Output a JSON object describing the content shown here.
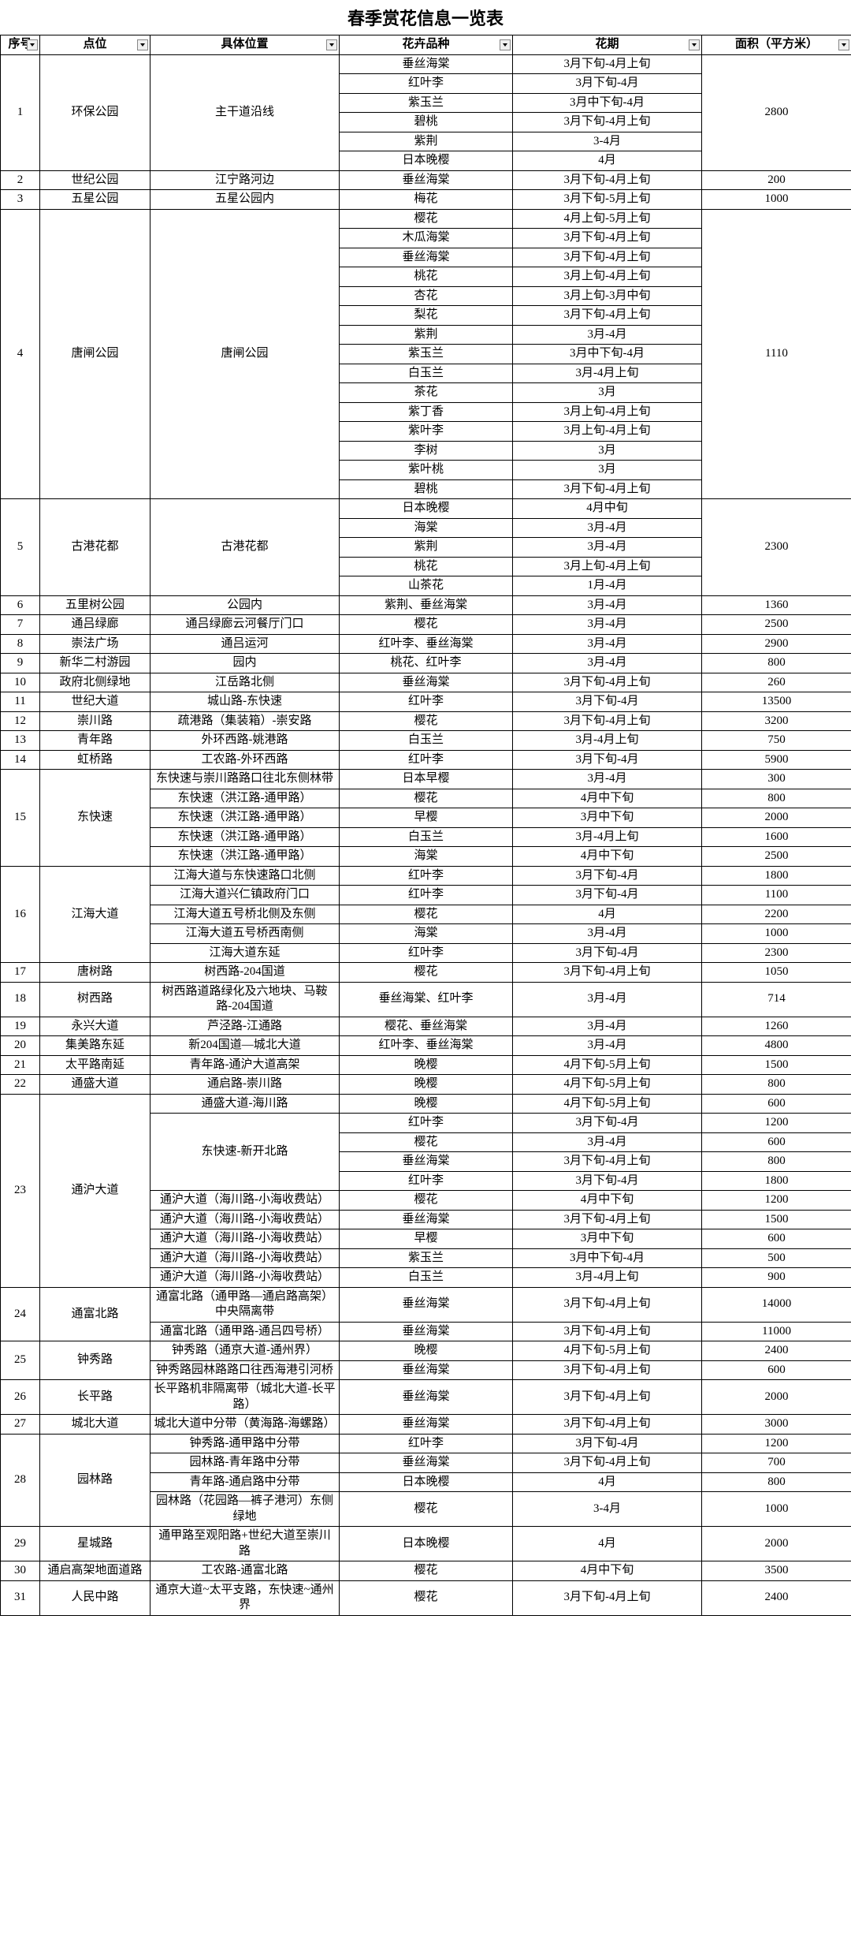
{
  "title": "春季赏花信息一览表",
  "headers": [
    "序号",
    "点位",
    "具体位置",
    "花卉品种",
    "花期",
    "面积（平方米）"
  ],
  "groups": [
    {
      "seq": "1",
      "site": "环保公园",
      "loc": "主干道沿线",
      "area": "2800",
      "items": [
        {
          "flower": "垂丝海棠",
          "period": "3月下旬-4月上旬"
        },
        {
          "flower": "红叶李",
          "period": "3月下旬-4月"
        },
        {
          "flower": "紫玉兰",
          "period": "3月中下旬-4月"
        },
        {
          "flower": "碧桃",
          "period": "3月下旬-4月上旬"
        },
        {
          "flower": "紫荆",
          "period": "3-4月"
        },
        {
          "flower": "日本晚樱",
          "period": "4月"
        }
      ]
    },
    {
      "seq": "2",
      "site": "世纪公园",
      "loc": "江宁路河边",
      "area": "200",
      "items": [
        {
          "flower": "垂丝海棠",
          "period": "3月下旬-4月上旬"
        }
      ]
    },
    {
      "seq": "3",
      "site": "五星公园",
      "loc": "五星公园内",
      "area": "1000",
      "items": [
        {
          "flower": "梅花",
          "period": "3月下旬-5月上旬"
        }
      ]
    },
    {
      "seq": "4",
      "site": "唐闸公园",
      "loc": "唐闸公园",
      "area": "1110",
      "items": [
        {
          "flower": "樱花",
          "period": "4月上旬-5月上旬"
        },
        {
          "flower": "木瓜海棠",
          "period": "3月下旬-4月上旬"
        },
        {
          "flower": "垂丝海棠",
          "period": "3月下旬-4月上旬"
        },
        {
          "flower": "桃花",
          "period": "3月上旬-4月上旬"
        },
        {
          "flower": "杏花",
          "period": "3月上旬-3月中旬"
        },
        {
          "flower": "梨花",
          "period": "3月下旬-4月上旬"
        },
        {
          "flower": "紫荆",
          "period": "3月-4月"
        },
        {
          "flower": "紫玉兰",
          "period": "3月中下旬-4月"
        },
        {
          "flower": "白玉兰",
          "period": "3月-4月上旬"
        },
        {
          "flower": "茶花",
          "period": "3月"
        },
        {
          "flower": "紫丁香",
          "period": "3月上旬-4月上旬"
        },
        {
          "flower": "紫叶李",
          "period": "3月上旬-4月上旬"
        },
        {
          "flower": "李树",
          "period": "3月"
        },
        {
          "flower": "紫叶桃",
          "period": "3月"
        },
        {
          "flower": "碧桃",
          "period": "3月下旬-4月上旬"
        }
      ]
    },
    {
      "seq": "5",
      "site": "古港花都",
      "loc": "古港花都",
      "area": "2300",
      "items": [
        {
          "flower": "日本晚樱",
          "period": "4月中旬"
        },
        {
          "flower": "海棠",
          "period": "3月-4月"
        },
        {
          "flower": "紫荆",
          "period": "3月-4月"
        },
        {
          "flower": "桃花",
          "period": "3月上旬-4月上旬"
        },
        {
          "flower": "山茶花",
          "period": "1月-4月"
        }
      ]
    },
    {
      "seq": "6",
      "site": "五里树公园",
      "loc": "公园内",
      "area": "1360",
      "items": [
        {
          "flower": "紫荆、垂丝海棠",
          "period": "3月-4月"
        }
      ]
    },
    {
      "seq": "7",
      "site": "通吕绿廊",
      "loc": "通吕绿廊云河餐厅门口",
      "area": "2500",
      "items": [
        {
          "flower": "樱花",
          "period": "3月-4月"
        }
      ]
    },
    {
      "seq": "8",
      "site": "崇法广场",
      "loc": "通吕运河",
      "area": "2900",
      "items": [
        {
          "flower": "红叶李、垂丝海棠",
          "period": "3月-4月"
        }
      ]
    },
    {
      "seq": "9",
      "site": "新华二村游园",
      "loc": "园内",
      "area": "800",
      "items": [
        {
          "flower": "桃花、红叶李",
          "period": "3月-4月"
        }
      ]
    },
    {
      "seq": "10",
      "site": "政府北侧绿地",
      "loc": "江岳路北侧",
      "area": "260",
      "items": [
        {
          "flower": "垂丝海棠",
          "period": "3月下旬-4月上旬"
        }
      ]
    },
    {
      "seq": "11",
      "site": "世纪大道",
      "loc": "城山路-东快速",
      "area": "13500",
      "items": [
        {
          "flower": "红叶李",
          "period": "3月下旬-4月"
        }
      ]
    },
    {
      "seq": "12",
      "site": "崇川路",
      "loc": "疏港路（集装箱）-崇安路",
      "area": "3200",
      "items": [
        {
          "flower": "樱花",
          "period": "3月下旬-4月上旬"
        }
      ]
    },
    {
      "seq": "13",
      "site": "青年路",
      "loc": "外环西路-姚港路",
      "area": "750",
      "items": [
        {
          "flower": "白玉兰",
          "period": "3月-4月上旬"
        }
      ]
    },
    {
      "seq": "14",
      "site": "虹桥路",
      "loc": "工农路-外环西路",
      "area": "5900",
      "items": [
        {
          "flower": "红叶李",
          "period": "3月下旬-4月"
        }
      ]
    },
    {
      "seq": "15",
      "site": "东快速",
      "sublocs": [
        {
          "loc": "东快速与崇川路路口往北东侧林带",
          "flower": "日本早樱",
          "period": "3月-4月",
          "area": "300"
        },
        {
          "loc": "东快速（洪江路-通甲路）",
          "flower": "樱花",
          "period": "4月中下旬",
          "area": "800"
        },
        {
          "loc": "东快速（洪江路-通甲路）",
          "flower": "早樱",
          "period": "3月中下旬",
          "area": "2000"
        },
        {
          "loc": "东快速（洪江路-通甲路）",
          "flower": "白玉兰",
          "period": "3月-4月上旬",
          "area": "1600"
        },
        {
          "loc": "东快速（洪江路-通甲路）",
          "flower": "海棠",
          "period": "4月中下旬",
          "area": "2500"
        }
      ]
    },
    {
      "seq": "16",
      "site": "江海大道",
      "sublocs": [
        {
          "loc": "江海大道与东快速路口北侧",
          "flower": "红叶李",
          "period": "3月下旬-4月",
          "area": "1800"
        },
        {
          "loc": "江海大道兴仁镇政府门口",
          "flower": "红叶李",
          "period": "3月下旬-4月",
          "area": "1100"
        },
        {
          "loc": "江海大道五号桥北侧及东侧",
          "flower": "樱花",
          "period": "4月",
          "area": "2200"
        },
        {
          "loc": "江海大道五号桥西南侧",
          "flower": "海棠",
          "period": "3月-4月",
          "area": "1000"
        },
        {
          "loc": "江海大道东延",
          "flower": "红叶李",
          "period": "3月下旬-4月",
          "area": "2300"
        }
      ]
    },
    {
      "seq": "17",
      "site": "唐树路",
      "loc": "树西路-204国道",
      "area": "1050",
      "items": [
        {
          "flower": "樱花",
          "period": "3月下旬-4月上旬"
        }
      ]
    },
    {
      "seq": "18",
      "site": "树西路",
      "loc": "树西路道路绿化及六地块、马鞍路-204国道",
      "area": "714",
      "items": [
        {
          "flower": "垂丝海棠、红叶李",
          "period": "3月-4月"
        }
      ]
    },
    {
      "seq": "19",
      "site": "永兴大道",
      "loc": "芦泾路-江通路",
      "area": "1260",
      "items": [
        {
          "flower": "樱花、垂丝海棠",
          "period": "3月-4月"
        }
      ]
    },
    {
      "seq": "20",
      "site": "集美路东延",
      "loc": "新204国道—城北大道",
      "area": "4800",
      "items": [
        {
          "flower": "红叶李、垂丝海棠",
          "period": "3月-4月"
        }
      ]
    },
    {
      "seq": "21",
      "site": "太平路南延",
      "loc": "青年路-通沪大道高架",
      "area": "1500",
      "items": [
        {
          "flower": "晚樱",
          "period": "4月下旬-5月上旬"
        }
      ]
    },
    {
      "seq": "22",
      "site": "通盛大道",
      "loc": "通启路-崇川路",
      "area": "800",
      "items": [
        {
          "flower": "晚樱",
          "period": "4月下旬-5月上旬"
        }
      ]
    },
    {
      "seq": "23",
      "site": "通沪大道",
      "sublocs": [
        {
          "loc": "通盛大道-海川路",
          "flower": "晚樱",
          "period": "4月下旬-5月上旬",
          "area": "600"
        },
        {
          "loc": "东快速-新开北路",
          "locspan": 4,
          "flower": "红叶李",
          "period": "3月下旬-4月",
          "area": "1200"
        },
        {
          "flower": "樱花",
          "period": "3月-4月",
          "area": "600"
        },
        {
          "flower": "垂丝海棠",
          "period": "3月下旬-4月上旬",
          "area": "800"
        },
        {
          "flower": "红叶李",
          "period": "3月下旬-4月",
          "area": "1800"
        },
        {
          "loc": "通沪大道（海川路-小海收费站）",
          "flower": "樱花",
          "period": "4月中下旬",
          "area": "1200"
        },
        {
          "loc": "通沪大道（海川路-小海收费站）",
          "flower": "垂丝海棠",
          "period": "3月下旬-4月上旬",
          "area": "1500"
        },
        {
          "loc": "通沪大道（海川路-小海收费站）",
          "flower": "早樱",
          "period": "3月中下旬",
          "area": "600"
        },
        {
          "loc": "通沪大道（海川路-小海收费站）",
          "flower": "紫玉兰",
          "period": "3月中下旬-4月",
          "area": "500"
        },
        {
          "loc": "通沪大道（海川路-小海收费站）",
          "flower": "白玉兰",
          "period": "3月-4月上旬",
          "area": "900"
        }
      ]
    },
    {
      "seq": "24",
      "site": "通富北路",
      "sublocs": [
        {
          "loc": "通富北路（通甲路—通启路高架）中央隔离带",
          "flower": "垂丝海棠",
          "period": "3月下旬-4月上旬",
          "area": "14000"
        },
        {
          "loc": "通富北路（通甲路-通吕四号桥）",
          "flower": "垂丝海棠",
          "period": "3月下旬-4月上旬",
          "area": "11000"
        }
      ]
    },
    {
      "seq": "25",
      "site": "钟秀路",
      "sublocs": [
        {
          "loc": "钟秀路（通京大道-通州界）",
          "flower": "晚樱",
          "period": "4月下旬-5月上旬",
          "area": "2400"
        },
        {
          "loc": "钟秀路园林路路口往西海港引河桥",
          "flower": "垂丝海棠",
          "period": "3月下旬-4月上旬",
          "area": "600"
        }
      ]
    },
    {
      "seq": "26",
      "site": "长平路",
      "loc": "长平路机非隔离带（城北大道-长平路）",
      "area": "2000",
      "items": [
        {
          "flower": "垂丝海棠",
          "period": "3月下旬-4月上旬"
        }
      ]
    },
    {
      "seq": "27",
      "site": "城北大道",
      "loc": "城北大道中分带（黄海路-海螺路）",
      "area": "3000",
      "items": [
        {
          "flower": "垂丝海棠",
          "period": "3月下旬-4月上旬"
        }
      ]
    },
    {
      "seq": "28",
      "site": "园林路",
      "sublocs": [
        {
          "loc": "钟秀路-通甲路中分带",
          "flower": "红叶李",
          "period": "3月下旬-4月",
          "area": "1200"
        },
        {
          "loc": "园林路-青年路中分带",
          "flower": "垂丝海棠",
          "period": "3月下旬-4月上旬",
          "area": "700"
        },
        {
          "loc": "青年路-通启路中分带",
          "flower": "日本晚樱",
          "period": "4月",
          "area": "800"
        },
        {
          "loc": "园林路（花园路—裤子港河）东侧绿地",
          "flower": "樱花",
          "period": "3-4月",
          "area": "1000"
        }
      ]
    },
    {
      "seq": "29",
      "site": "星城路",
      "loc": "通甲路至观阳路+世纪大道至崇川路",
      "area": "2000",
      "items": [
        {
          "flower": "日本晚樱",
          "period": "4月"
        }
      ]
    },
    {
      "seq": "30",
      "site": "通启高架地面道路",
      "loc": "工农路-通富北路",
      "area": "3500",
      "items": [
        {
          "flower": "樱花",
          "period": "4月中下旬"
        }
      ]
    },
    {
      "seq": "31",
      "site": "人民中路",
      "loc": "通京大道~太平支路，东快速~通州界",
      "area": "2400",
      "items": [
        {
          "flower": "樱花",
          "period": "3月下旬-4月上旬"
        }
      ]
    }
  ]
}
